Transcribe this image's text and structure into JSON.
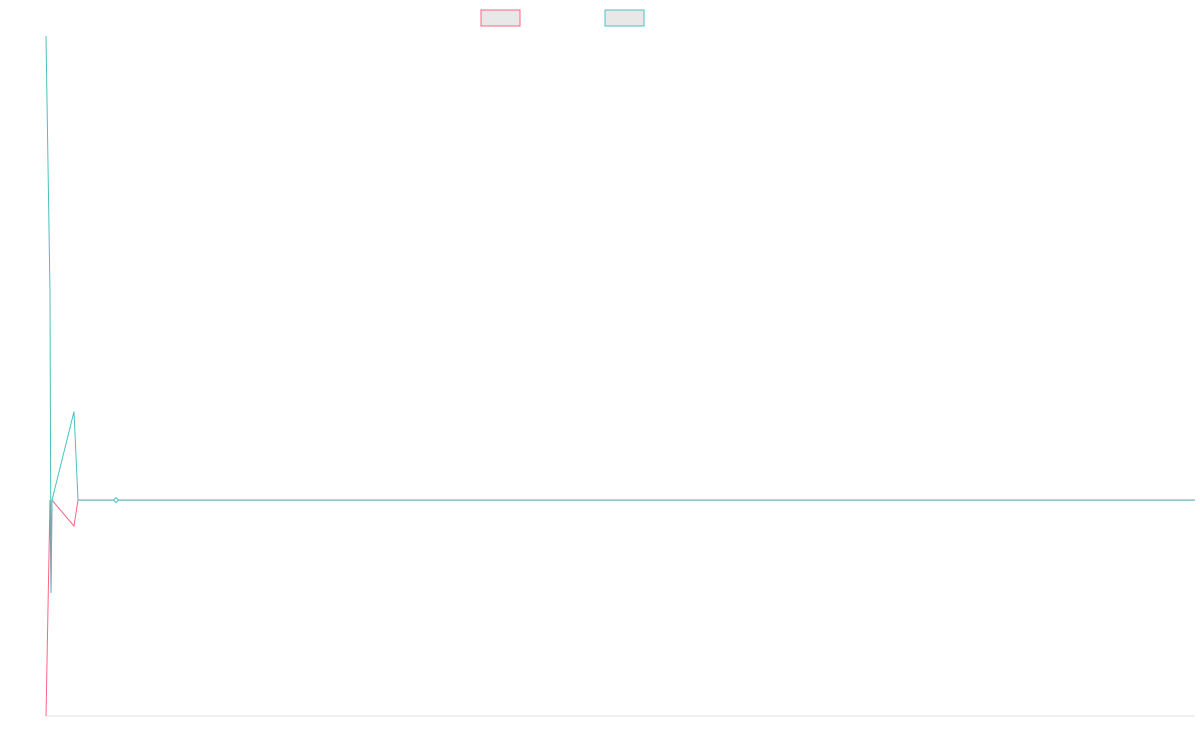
{
  "chart_data": {
    "type": "line",
    "x": [
      0,
      4,
      5,
      6,
      28,
      32,
      70,
      1149
    ],
    "series": [
      {
        "color": "#ff6384",
        "values": [
          -1,
          0,
          -0.43,
          0,
          -0.12,
          0,
          0,
          0
        ]
      },
      {
        "color": "#4bc0c0",
        "values": [
          2.15,
          0.96,
          -0.43,
          0,
          0.41,
          0,
          0,
          0
        ]
      }
    ],
    "xlim": [
      0,
      1149
    ],
    "ylim": [
      -1,
      2.15
    ],
    "grid": false,
    "legend": "top"
  }
}
